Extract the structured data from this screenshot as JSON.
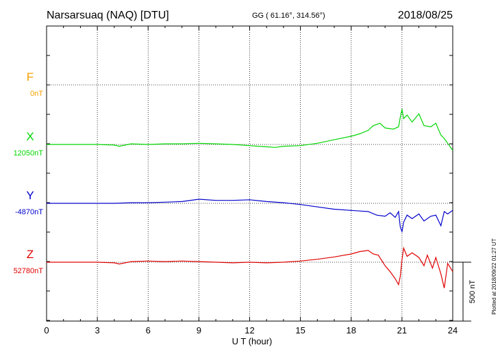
{
  "header": {
    "station": "Narsarsuaq (NAQ)  [DTU]",
    "coords": "GG ( 61.16°, 314.56°)",
    "date": "2018/08/25"
  },
  "footer": {
    "plotted": "Plotted at 2018/09/22 01:27 UT"
  },
  "colors": {
    "F": "#f5a000",
    "X": "#00d600",
    "Y": "#0000cc",
    "Z": "#e00000"
  },
  "chart_data": {
    "type": "line",
    "xlabel": "U T (hour)",
    "xlim": [
      0,
      24
    ],
    "xticks": [
      0,
      3,
      6,
      9,
      12,
      15,
      18,
      21,
      24
    ],
    "xtick_labels": [
      "0",
      "3",
      "6",
      "9",
      "12",
      "15",
      "18",
      "21",
      "24"
    ],
    "scale_bar_label": "500 nT",
    "grid": true,
    "series": [
      {
        "name": "F",
        "baseline_label": "0nT",
        "x": [],
        "values": []
      },
      {
        "name": "X",
        "baseline_label": "12050nT",
        "x": [
          0,
          1,
          2,
          3,
          4,
          4.3,
          5,
          6,
          7,
          8,
          9,
          10,
          11,
          12,
          12.5,
          13,
          13.5,
          14,
          15,
          16,
          17,
          18,
          18.5,
          19,
          19.3,
          19.7,
          20,
          20.5,
          20.8,
          20.9,
          21.0,
          21.1,
          21.3,
          21.6,
          22,
          22.3,
          22.7,
          23,
          23.3,
          23.5,
          23.7,
          24
        ],
        "values": [
          0,
          0,
          0,
          0,
          -5,
          -15,
          5,
          0,
          5,
          5,
          10,
          5,
          0,
          -10,
          -15,
          -20,
          -25,
          -15,
          -10,
          10,
          40,
          70,
          90,
          120,
          160,
          180,
          140,
          130,
          150,
          230,
          300,
          220,
          250,
          190,
          260,
          160,
          150,
          180,
          80,
          50,
          10,
          -50
        ]
      },
      {
        "name": "Y",
        "baseline_label": "-4870nT",
        "x": [
          0,
          1,
          2,
          3,
          4,
          5,
          6,
          7,
          8,
          9,
          10,
          11,
          12,
          13,
          14,
          15,
          16,
          17,
          18,
          18.5,
          19,
          19.5,
          20,
          20.3,
          20.6,
          20.8,
          20.9,
          21.0,
          21.1,
          21.3,
          21.6,
          22,
          22.3,
          22.7,
          23,
          23.3,
          23.5,
          23.7,
          24
        ],
        "values": [
          0,
          0,
          0,
          0,
          0,
          5,
          5,
          10,
          15,
          35,
          25,
          25,
          30,
          15,
          5,
          -10,
          -30,
          -50,
          -60,
          -65,
          -70,
          -100,
          -110,
          -80,
          -120,
          -70,
          -200,
          -240,
          -160,
          -100,
          -130,
          -90,
          -150,
          -110,
          -100,
          -190,
          -70,
          -90,
          -60
        ]
      },
      {
        "name": "Z",
        "baseline_label": "52780nT",
        "x": [
          0,
          1,
          2,
          3,
          4,
          4.3,
          5,
          6,
          7,
          8,
          9,
          10,
          11,
          12,
          13,
          14,
          15,
          16,
          17,
          18,
          18.5,
          19,
          19.3,
          19.6,
          20,
          20.3,
          20.6,
          20.8,
          20.9,
          21.0,
          21.1,
          21.3,
          21.6,
          22,
          22.3,
          22.5,
          22.8,
          23.0,
          23.3,
          23.5,
          23.7,
          24
        ],
        "values": [
          0,
          0,
          0,
          0,
          -5,
          -15,
          5,
          10,
          5,
          10,
          5,
          0,
          -5,
          0,
          -5,
          0,
          10,
          25,
          45,
          70,
          90,
          100,
          70,
          60,
          -30,
          -80,
          -140,
          -190,
          -120,
          20,
          120,
          50,
          80,
          40,
          -30,
          60,
          -50,
          40,
          -100,
          -220,
          -10,
          -80
        ]
      }
    ]
  }
}
